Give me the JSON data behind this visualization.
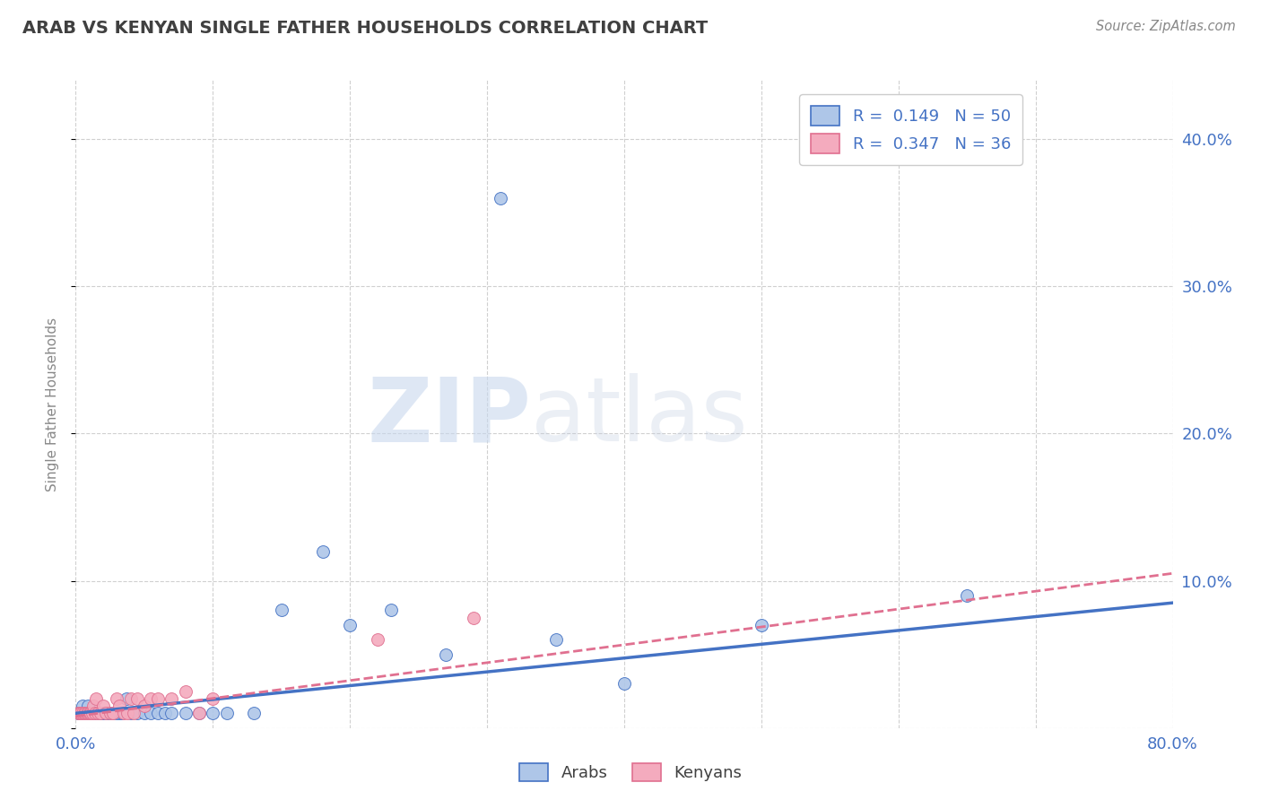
{
  "title": "ARAB VS KENYAN SINGLE FATHER HOUSEHOLDS CORRELATION CHART",
  "source": "Source: ZipAtlas.com",
  "ylabel": "Single Father Households",
  "xlim": [
    0.0,
    0.8
  ],
  "ylim": [
    0.0,
    0.44
  ],
  "xticks": [
    0.0,
    0.1,
    0.2,
    0.3,
    0.4,
    0.5,
    0.6,
    0.7,
    0.8
  ],
  "xticklabels": [
    "0.0%",
    "",
    "",
    "",
    "",
    "",
    "",
    "",
    "80.0%"
  ],
  "yticks_right": [
    0.0,
    0.1,
    0.2,
    0.3,
    0.4
  ],
  "ytick_labels_right": [
    "",
    "10.0%",
    "20.0%",
    "30.0%",
    "40.0%"
  ],
  "legend_R_arab": "R =  0.149",
  "legend_N_arab": "N = 50",
  "legend_R_kenyan": "R =  0.347",
  "legend_N_kenyan": "N = 36",
  "arab_color": "#aec6e8",
  "kenyan_color": "#f4abbe",
  "arab_line_color": "#4472c4",
  "kenyan_line_color": "#e07090",
  "text_color": "#4472c4",
  "title_color": "#404040",
  "grid_color": "#d0d0d0",
  "background_color": "#ffffff",
  "arab_scatter_x": [
    0.002,
    0.003,
    0.004,
    0.005,
    0.005,
    0.006,
    0.007,
    0.008,
    0.009,
    0.01,
    0.011,
    0.012,
    0.013,
    0.014,
    0.015,
    0.016,
    0.017,
    0.018,
    0.019,
    0.02,
    0.022,
    0.024,
    0.025,
    0.027,
    0.03,
    0.032,
    0.034,
    0.037,
    0.04,
    0.045,
    0.05,
    0.055,
    0.06,
    0.065,
    0.07,
    0.08,
    0.09,
    0.1,
    0.11,
    0.13,
    0.15,
    0.18,
    0.2,
    0.23,
    0.27,
    0.31,
    0.35,
    0.4,
    0.5,
    0.65
  ],
  "arab_scatter_y": [
    0.01,
    0.01,
    0.01,
    0.01,
    0.015,
    0.01,
    0.01,
    0.01,
    0.015,
    0.01,
    0.01,
    0.01,
    0.01,
    0.01,
    0.01,
    0.01,
    0.01,
    0.01,
    0.01,
    0.01,
    0.01,
    0.01,
    0.01,
    0.01,
    0.01,
    0.01,
    0.01,
    0.02,
    0.01,
    0.01,
    0.01,
    0.01,
    0.01,
    0.01,
    0.01,
    0.01,
    0.01,
    0.01,
    0.01,
    0.01,
    0.08,
    0.12,
    0.07,
    0.08,
    0.05,
    0.36,
    0.06,
    0.03,
    0.07,
    0.09
  ],
  "kenyan_scatter_x": [
    0.002,
    0.003,
    0.004,
    0.005,
    0.006,
    0.007,
    0.008,
    0.009,
    0.01,
    0.011,
    0.012,
    0.013,
    0.014,
    0.015,
    0.016,
    0.018,
    0.02,
    0.022,
    0.025,
    0.027,
    0.03,
    0.032,
    0.035,
    0.038,
    0.04,
    0.042,
    0.045,
    0.05,
    0.055,
    0.06,
    0.07,
    0.08,
    0.09,
    0.1,
    0.22,
    0.29
  ],
  "kenyan_scatter_y": [
    0.01,
    0.01,
    0.01,
    0.01,
    0.01,
    0.01,
    0.01,
    0.01,
    0.01,
    0.01,
    0.01,
    0.015,
    0.01,
    0.02,
    0.01,
    0.01,
    0.015,
    0.01,
    0.01,
    0.01,
    0.02,
    0.015,
    0.01,
    0.01,
    0.02,
    0.01,
    0.02,
    0.015,
    0.02,
    0.02,
    0.02,
    0.025,
    0.01,
    0.02,
    0.06,
    0.075
  ],
  "arab_trend_x0": 0.0,
  "arab_trend_y0": 0.01,
  "arab_trend_x1": 0.8,
  "arab_trend_y1": 0.085,
  "kenyan_trend_x0": 0.0,
  "kenyan_trend_y0": 0.008,
  "kenyan_trend_x1": 0.8,
  "kenyan_trend_y1": 0.105
}
